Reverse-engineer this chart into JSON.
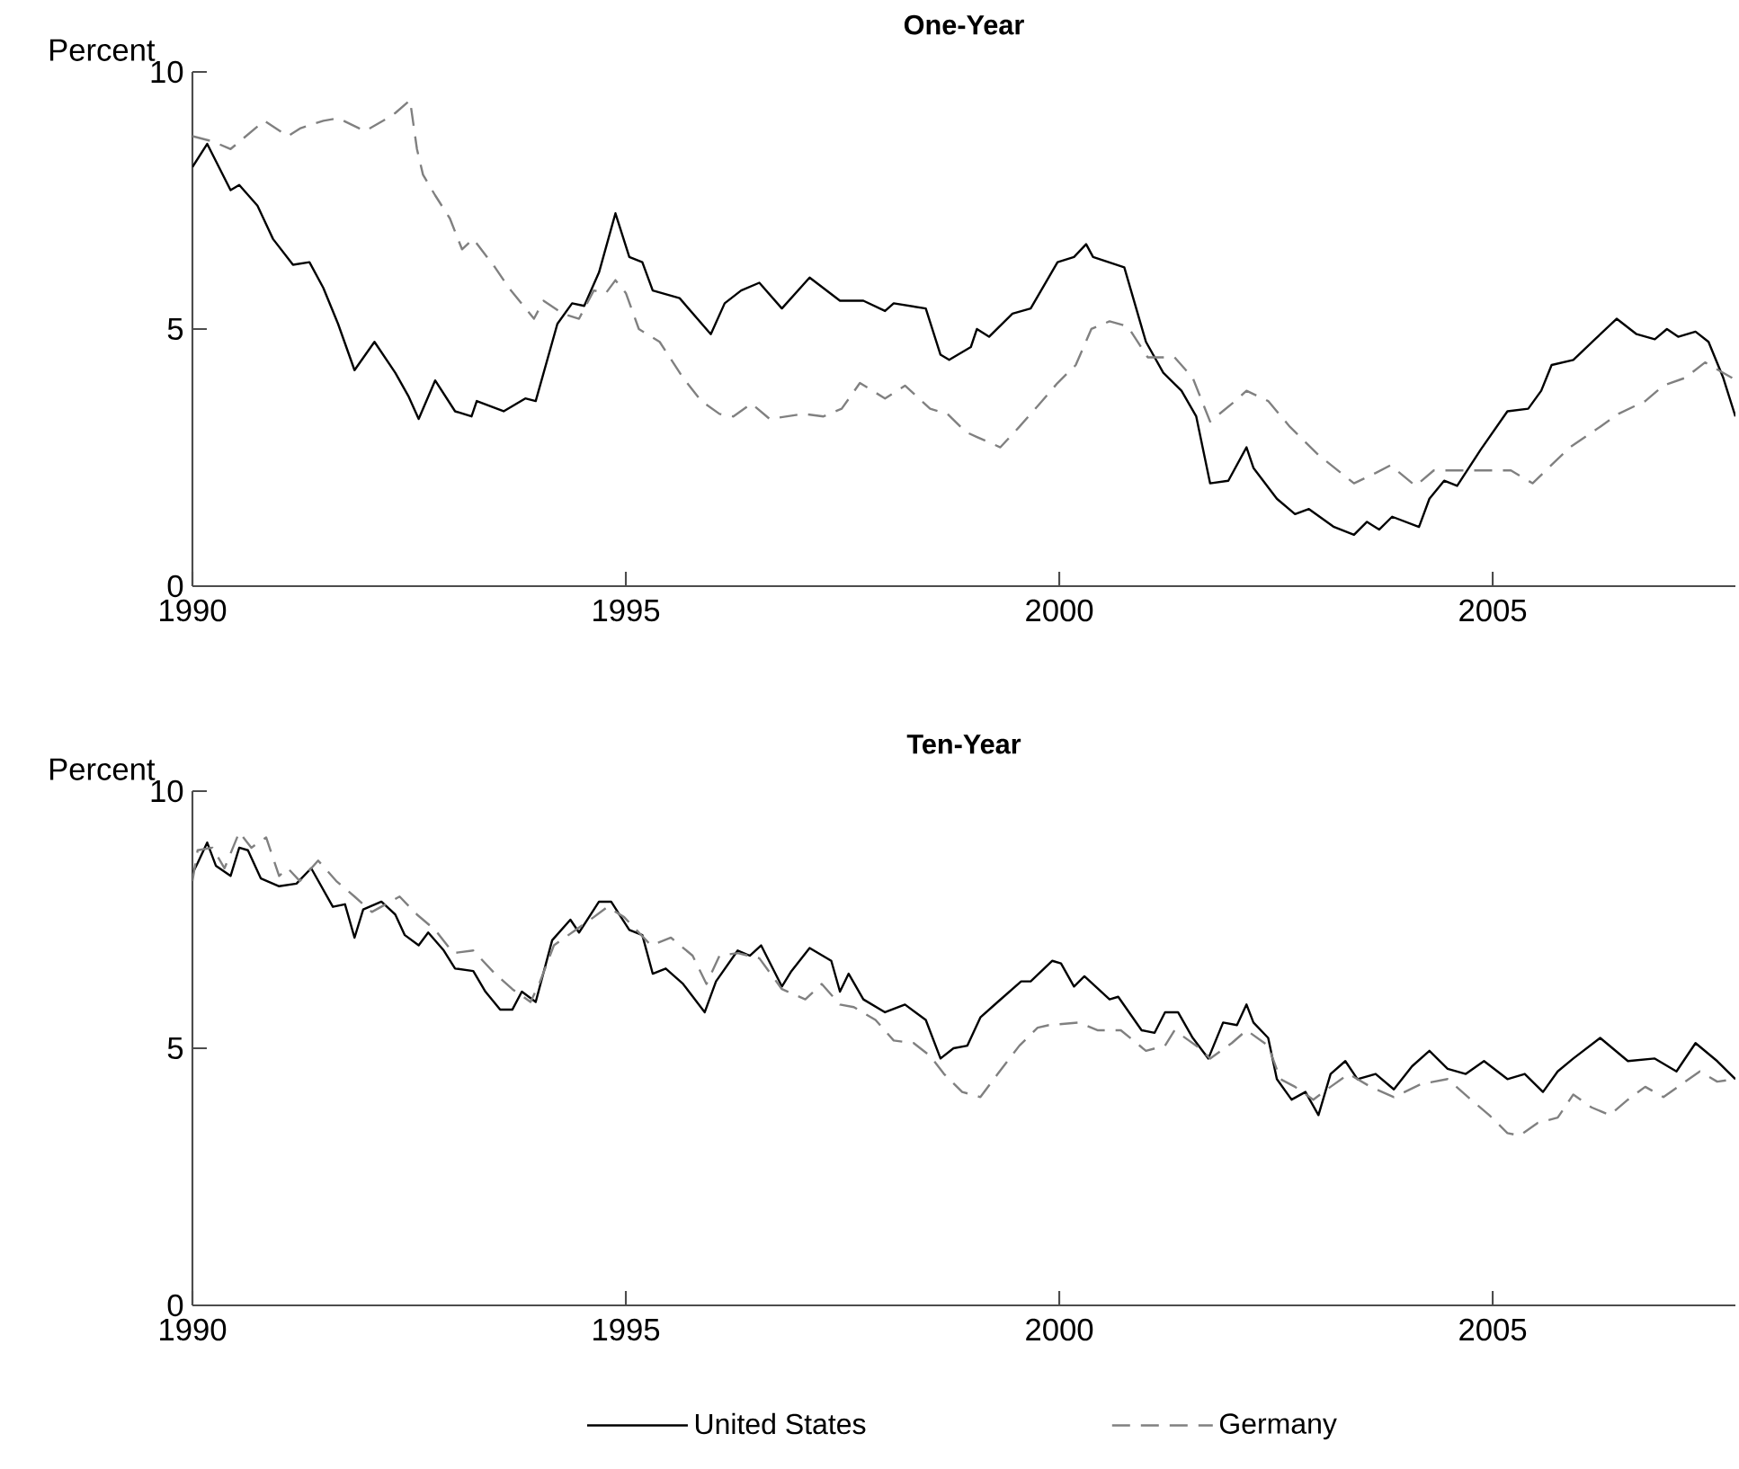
{
  "chart_data": [
    {
      "type": "line",
      "title": "One-Year",
      "ylabel": "Percent",
      "xlim": [
        1990,
        2007.8
      ],
      "ylim": [
        0,
        10
      ],
      "xticks": [
        1990,
        1995,
        2000,
        2005
      ],
      "yticks": [
        0,
        5,
        10
      ],
      "grid": false,
      "series": [
        {
          "color": "#000000",
          "line_style": "solid",
          "x": [
            1990.0,
            1990.17,
            1990.44,
            1990.54,
            1990.75,
            1990.93,
            1991.16,
            1991.35,
            1991.51,
            1991.68,
            1991.87,
            1992.1,
            1992.34,
            1992.49,
            1992.61,
            1992.8,
            1993.03,
            1993.22,
            1993.28,
            1993.59,
            1993.84,
            1993.96,
            1994.21,
            1994.38,
            1994.52,
            1994.69,
            1994.88,
            1995.04,
            1995.19,
            1995.31,
            1995.62,
            1995.98,
            1996.14,
            1996.33,
            1996.54,
            1996.8,
            1997.12,
            1997.47,
            1997.74,
            1997.99,
            1998.09,
            1998.46,
            1998.63,
            1998.73,
            1998.98,
            1999.05,
            1999.19,
            1999.46,
            1999.67,
            1999.98,
            2000.17,
            2000.31,
            2000.39,
            2000.75,
            2001.0,
            2001.2,
            2001.41,
            2001.58,
            2001.74,
            2001.95,
            2002.16,
            2002.24,
            2002.51,
            2002.72,
            2002.88,
            2003.17,
            2003.4,
            2003.55,
            2003.69,
            2003.84,
            2004.15,
            2004.27,
            2004.44,
            2004.59,
            2004.86,
            2005.17,
            2005.41,
            2005.56,
            2005.68,
            2005.93,
            2006.18,
            2006.43,
            2006.66,
            2006.87,
            2007.01,
            2007.14,
            2007.34,
            2007.49,
            2007.66,
            2007.8
          ],
          "values": [
            8.15,
            8.6,
            7.7,
            7.8,
            7.4,
            6.75,
            6.25,
            6.3,
            5.8,
            5.1,
            4.2,
            4.75,
            4.15,
            3.7,
            3.25,
            4.0,
            3.4,
            3.3,
            3.6,
            3.4,
            3.65,
            3.6,
            5.1,
            5.5,
            5.45,
            6.1,
            7.25,
            6.4,
            6.3,
            5.75,
            5.6,
            4.9,
            5.5,
            5.75,
            5.9,
            5.4,
            6.0,
            5.55,
            5.55,
            5.35,
            5.5,
            5.4,
            4.5,
            4.4,
            4.65,
            5.0,
            4.85,
            5.3,
            5.4,
            6.3,
            6.4,
            6.65,
            6.4,
            6.2,
            4.75,
            4.15,
            3.8,
            3.3,
            2.0,
            2.05,
            2.7,
            2.3,
            1.7,
            1.4,
            1.5,
            1.15,
            1.0,
            1.25,
            1.1,
            1.35,
            1.15,
            1.7,
            2.05,
            1.95,
            2.65,
            3.4,
            3.45,
            3.8,
            4.3,
            4.4,
            4.8,
            5.2,
            4.9,
            4.8,
            5.0,
            4.85,
            4.95,
            4.75,
            4.05,
            3.3
          ]
        },
        {
          "color": "#808080",
          "line_style": "dashed",
          "x": [
            1990.0,
            1990.23,
            1990.44,
            1990.83,
            1991.1,
            1991.24,
            1991.51,
            1991.68,
            1991.99,
            1992.2,
            1992.34,
            1992.51,
            1992.59,
            1992.66,
            1992.8,
            1992.97,
            1993.11,
            1993.24,
            1993.49,
            1993.65,
            1993.94,
            1994.05,
            1994.27,
            1994.46,
            1994.63,
            1994.77,
            1994.88,
            1995.0,
            1995.15,
            1995.39,
            1995.66,
            1995.87,
            1996.08,
            1996.24,
            1996.45,
            1996.66,
            1997.05,
            1997.28,
            1997.49,
            1997.7,
            1997.99,
            1998.22,
            1998.51,
            1998.71,
            1998.92,
            1999.05,
            1999.32,
            1999.54,
            1999.75,
            1999.98,
            2000.19,
            2000.37,
            2000.58,
            2000.79,
            2001.02,
            2001.33,
            2001.54,
            2001.74,
            2002.03,
            2002.16,
            2002.41,
            2002.66,
            2002.99,
            2003.4,
            2003.65,
            2003.82,
            2004.11,
            2004.32,
            2004.63,
            2004.9,
            2005.21,
            2005.46,
            2005.89,
            2006.24,
            2006.45,
            2006.76,
            2006.97,
            2007.22,
            2007.45,
            2007.76,
            2007.8
          ],
          "values": [
            8.75,
            8.65,
            8.5,
            9.05,
            8.75,
            8.9,
            9.05,
            9.1,
            8.85,
            9.05,
            9.2,
            9.45,
            8.5,
            8.0,
            7.6,
            7.15,
            6.55,
            6.75,
            6.2,
            5.8,
            5.2,
            5.55,
            5.3,
            5.2,
            5.75,
            5.7,
            5.95,
            5.7,
            5.0,
            4.75,
            4.05,
            3.6,
            3.35,
            3.3,
            3.55,
            3.25,
            3.35,
            3.3,
            3.45,
            3.95,
            3.65,
            3.9,
            3.45,
            3.35,
            3.0,
            2.9,
            2.7,
            3.1,
            3.5,
            3.95,
            4.3,
            5.0,
            5.15,
            5.05,
            4.45,
            4.45,
            4.05,
            3.2,
            3.6,
            3.8,
            3.6,
            3.1,
            2.55,
            2.0,
            2.2,
            2.35,
            1.95,
            2.25,
            2.25,
            2.25,
            2.25,
            2.0,
            2.7,
            3.1,
            3.35,
            3.6,
            3.9,
            4.05,
            4.35,
            4.05,
            4.0
          ]
        }
      ]
    },
    {
      "type": "line",
      "title": "Ten-Year",
      "ylabel": "Percent",
      "xlim": [
        1990,
        2007.8
      ],
      "ylim": [
        0,
        10
      ],
      "xticks": [
        1990,
        1995,
        2000,
        2005
      ],
      "yticks": [
        0,
        5,
        10
      ],
      "grid": false,
      "legend": "bottom",
      "series": [
        {
          "name": "United States",
          "color": "#000000",
          "line_style": "solid",
          "x": [
            1990.0,
            1990.06,
            1990.17,
            1990.27,
            1990.44,
            1990.54,
            1990.64,
            1990.79,
            1991.0,
            1991.2,
            1991.37,
            1991.62,
            1991.76,
            1991.87,
            1991.97,
            1992.18,
            1992.34,
            1992.45,
            1992.61,
            1992.72,
            1992.9,
            1993.03,
            1993.24,
            1993.38,
            1993.55,
            1993.69,
            1993.8,
            1993.96,
            1994.15,
            1994.36,
            1994.46,
            1994.69,
            1994.83,
            1995.04,
            1995.19,
            1995.31,
            1995.46,
            1995.66,
            1995.91,
            1996.04,
            1996.29,
            1996.43,
            1996.56,
            1996.8,
            1996.91,
            1997.12,
            1997.37,
            1997.47,
            1997.57,
            1997.74,
            1997.99,
            1998.22,
            1998.46,
            1998.63,
            1998.78,
            1998.94,
            1999.09,
            1999.29,
            1999.56,
            1999.67,
            1999.92,
            2000.02,
            2000.17,
            2000.29,
            2000.58,
            2000.68,
            2000.95,
            2001.1,
            2001.22,
            2001.37,
            2001.54,
            2001.72,
            2001.89,
            2002.05,
            2002.16,
            2002.24,
            2002.41,
            2002.51,
            2002.68,
            2002.84,
            2002.99,
            2003.13,
            2003.3,
            2003.44,
            2003.65,
            2003.86,
            2004.07,
            2004.27,
            2004.48,
            2004.69,
            2004.9,
            2005.17,
            2005.37,
            2005.58,
            2005.75,
            2005.93,
            2006.24,
            2006.56,
            2006.87,
            2007.12,
            2007.34,
            2007.59,
            2007.8
          ],
          "values": [
            8.4,
            8.6,
            9.0,
            8.55,
            8.35,
            8.9,
            8.85,
            8.3,
            8.15,
            8.2,
            8.5,
            7.75,
            7.8,
            7.15,
            7.7,
            7.85,
            7.6,
            7.2,
            7.0,
            7.25,
            6.9,
            6.55,
            6.5,
            6.1,
            5.75,
            5.75,
            6.1,
            5.9,
            7.1,
            7.5,
            7.25,
            7.85,
            7.85,
            7.3,
            7.2,
            6.45,
            6.55,
            6.25,
            5.7,
            6.3,
            6.9,
            6.8,
            7.0,
            6.2,
            6.5,
            6.95,
            6.7,
            6.1,
            6.45,
            5.95,
            5.7,
            5.85,
            5.55,
            4.8,
            5.0,
            5.05,
            5.6,
            5.9,
            6.3,
            6.3,
            6.7,
            6.65,
            6.2,
            6.4,
            5.95,
            6.0,
            5.35,
            5.3,
            5.7,
            5.7,
            5.2,
            4.8,
            5.5,
            5.45,
            5.85,
            5.5,
            5.2,
            4.4,
            4.0,
            4.15,
            3.7,
            4.5,
            4.75,
            4.4,
            4.5,
            4.2,
            4.65,
            4.95,
            4.6,
            4.5,
            4.75,
            4.4,
            4.5,
            4.15,
            4.55,
            4.8,
            5.2,
            4.75,
            4.8,
            4.55,
            5.1,
            4.75,
            4.4
          ]
        },
        {
          "name": "Germany",
          "color": "#808080",
          "line_style": "dashed",
          "x": [
            1990.0,
            1990.06,
            1990.23,
            1990.37,
            1990.54,
            1990.68,
            1990.85,
            1991.0,
            1991.1,
            1991.24,
            1991.45,
            1991.66,
            1991.87,
            1992.07,
            1992.39,
            1992.59,
            1992.8,
            1993.01,
            1993.24,
            1993.49,
            1993.69,
            1993.9,
            1994.0,
            1994.17,
            1994.42,
            1994.63,
            1994.79,
            1994.98,
            1995.29,
            1995.52,
            1995.77,
            1995.93,
            1996.08,
            1996.29,
            1996.54,
            1996.8,
            1997.07,
            1997.26,
            1997.47,
            1997.63,
            1997.88,
            1998.09,
            1998.32,
            1998.51,
            1998.67,
            1998.88,
            1999.09,
            1999.29,
            1999.54,
            1999.75,
            1999.88,
            2000.23,
            2000.44,
            2000.71,
            2001.0,
            2001.22,
            2001.33,
            2001.62,
            2001.74,
            2001.99,
            2002.16,
            2002.41,
            2002.55,
            2002.72,
            2002.93,
            2003.13,
            2003.34,
            2003.59,
            2003.86,
            2004.17,
            2004.48,
            2004.75,
            2004.96,
            2005.17,
            2005.31,
            2005.52,
            2005.75,
            2005.93,
            2006.14,
            2006.35,
            2006.56,
            2006.76,
            2006.97,
            2007.22,
            2007.39,
            2007.59,
            2007.8
          ],
          "values": [
            8.25,
            8.85,
            8.9,
            8.5,
            9.2,
            8.9,
            9.1,
            8.35,
            8.5,
            8.25,
            8.65,
            8.25,
            7.95,
            7.65,
            7.95,
            7.6,
            7.3,
            6.85,
            6.9,
            6.45,
            6.15,
            5.9,
            6.25,
            7.0,
            7.3,
            7.55,
            7.75,
            7.55,
            7.0,
            7.15,
            6.8,
            6.25,
            6.8,
            6.85,
            6.75,
            6.15,
            5.95,
            6.25,
            5.85,
            5.8,
            5.55,
            5.15,
            5.1,
            4.85,
            4.5,
            4.15,
            4.05,
            4.5,
            5.05,
            5.4,
            5.45,
            5.5,
            5.35,
            5.35,
            4.95,
            5.05,
            5.35,
            5.0,
            4.8,
            5.1,
            5.35,
            5.05,
            4.4,
            4.25,
            4.0,
            4.25,
            4.5,
            4.25,
            4.05,
            4.3,
            4.4,
            4.0,
            3.7,
            3.35,
            3.3,
            3.55,
            3.65,
            4.1,
            3.85,
            3.7,
            4.0,
            4.25,
            4.05,
            4.35,
            4.55,
            4.35,
            4.4
          ]
        }
      ]
    }
  ]
}
